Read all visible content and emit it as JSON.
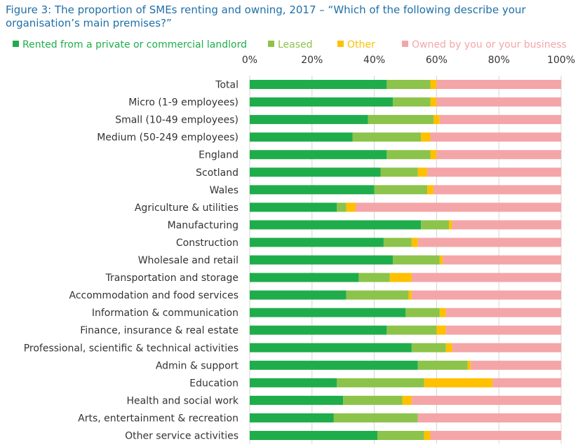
{
  "title": "Figure 3: The proportion of SMEs renting and owning, 2017 – “Which of the following describe your organisation’s main premises?”",
  "chart_data": {
    "type": "bar",
    "orientation": "horizontal",
    "stacked": true,
    "title": "Figure 3: The proportion of SMEs renting and owning, 2017 – “Which of the following describe your organisation’s main premises?”",
    "xlim": [
      0,
      100
    ],
    "x_ticks": [
      "0%",
      "20%",
      "40%",
      "60%",
      "80%",
      "100%"
    ],
    "grid": "vertical",
    "legend_position": "top",
    "categories": [
      "Total",
      "Micro (1-9 employees)",
      "Small (10-49 employees)",
      "Medium (50-249 employees)",
      "England",
      "Scotland",
      "Wales",
      "Agriculture & utilities",
      "Manufacturing",
      "Construction",
      "Wholesale and retail",
      "Transportation and storage",
      "Accommodation and food services",
      "Information & communication",
      "Finance, insurance & real estate",
      "Professional, scientific & technical activities",
      "Admin & support",
      "Education",
      "Health and social work",
      "Arts, entertainment & recreation",
      "Other service activities"
    ],
    "series": [
      {
        "name": "Rented from a private or commercial landlord",
        "color": "#1fad4b",
        "values": [
          44,
          46,
          38,
          33,
          44,
          42,
          40,
          28,
          55,
          43,
          46,
          35,
          31,
          50,
          44,
          52,
          54,
          28,
          30,
          27,
          41
        ]
      },
      {
        "name": "Leased",
        "color": "#8cc34a",
        "values": [
          14,
          12,
          21,
          22,
          14,
          12,
          17,
          3,
          9,
          9,
          15,
          10,
          20,
          11,
          16,
          11,
          16,
          28,
          19,
          27,
          15
        ]
      },
      {
        "name": "Other",
        "color": "#ffc000",
        "values": [
          2,
          2,
          2,
          3,
          2,
          3,
          2,
          3,
          1,
          2,
          1,
          7,
          1,
          2,
          3,
          2,
          1,
          22,
          3,
          0,
          2
        ]
      },
      {
        "name": "Owned by you or your business",
        "color": "#f4a5a8",
        "values": [
          40,
          40,
          39,
          42,
          40,
          43,
          41,
          66,
          35,
          46,
          38,
          48,
          48,
          37,
          37,
          35,
          29,
          22,
          48,
          46,
          42
        ]
      }
    ]
  }
}
